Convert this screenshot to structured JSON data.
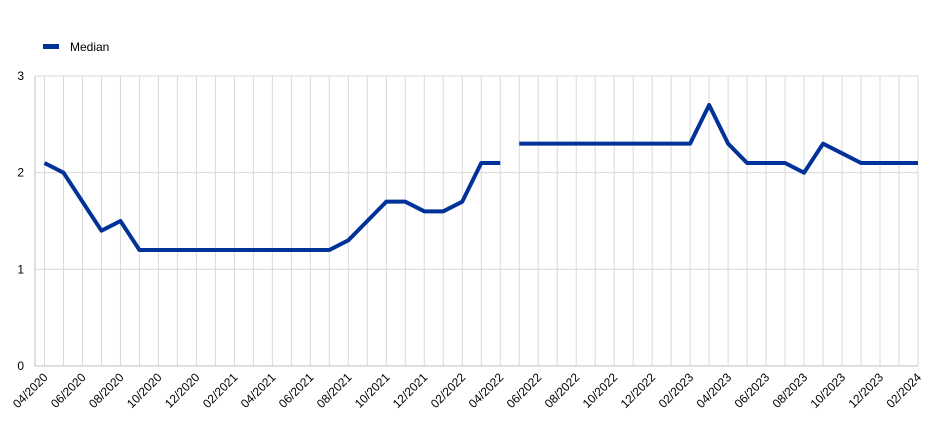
{
  "chart_data": {
    "type": "line",
    "title": "",
    "xlabel": "",
    "ylabel": "",
    "ylim": [
      0,
      3
    ],
    "yticks": [
      0,
      1,
      2,
      3
    ],
    "grid": true,
    "legend_position": "top-left",
    "x": [
      "04/2020",
      "05/2020",
      "06/2020",
      "07/2020",
      "08/2020",
      "09/2020",
      "10/2020",
      "11/2020",
      "12/2020",
      "01/2021",
      "02/2021",
      "03/2021",
      "04/2021",
      "05/2021",
      "06/2021",
      "07/2021",
      "08/2021",
      "09/2021",
      "10/2021",
      "11/2021",
      "12/2021",
      "01/2022",
      "02/2022",
      "03/2022",
      "04/2022",
      "05/2022",
      "06/2022",
      "07/2022",
      "08/2022",
      "09/2022",
      "10/2022",
      "11/2022",
      "12/2022",
      "01/2023",
      "02/2023",
      "03/2023",
      "04/2023",
      "05/2023",
      "06/2023",
      "07/2023",
      "08/2023",
      "09/2023",
      "10/2023",
      "11/2023",
      "12/2023",
      "01/2024",
      "02/2024"
    ],
    "xtick_labels": [
      "04/2020",
      "06/2020",
      "08/2020",
      "10/2020",
      "12/2020",
      "02/2021",
      "04/2021",
      "06/2021",
      "08/2021",
      "10/2021",
      "12/2021",
      "02/2022",
      "04/2022",
      "06/2022",
      "08/2022",
      "10/2022",
      "12/2022",
      "02/2023",
      "04/2023",
      "06/2023",
      "08/2023",
      "10/2023",
      "12/2023",
      "02/2024"
    ],
    "series": [
      {
        "name": "Median",
        "color": "#003299",
        "segments": [
          {
            "x": [
              "04/2020",
              "05/2020",
              "06/2020",
              "07/2020",
              "08/2020",
              "09/2020",
              "10/2020",
              "11/2020",
              "12/2020",
              "01/2021",
              "02/2021",
              "03/2021",
              "04/2021",
              "05/2021",
              "06/2021",
              "07/2021",
              "08/2021",
              "09/2021",
              "10/2021",
              "11/2021",
              "12/2021",
              "01/2022",
              "02/2022",
              "03/2022",
              "04/2022"
            ],
            "values": [
              2.1,
              2.0,
              1.7,
              1.4,
              1.5,
              1.2,
              1.2,
              1.2,
              1.2,
              1.2,
              1.2,
              1.2,
              1.2,
              1.2,
              1.2,
              1.2,
              1.3,
              1.5,
              1.7,
              1.7,
              1.6,
              1.6,
              1.7,
              2.1,
              2.1
            ]
          },
          {
            "x": [
              "05/2022",
              "06/2022",
              "07/2022",
              "08/2022",
              "09/2022",
              "10/2022",
              "11/2022",
              "12/2022",
              "01/2023",
              "02/2023",
              "03/2023",
              "04/2023",
              "05/2023",
              "06/2023",
              "07/2023",
              "08/2023",
              "09/2023",
              "10/2023",
              "11/2023",
              "12/2023",
              "01/2024",
              "02/2024"
            ],
            "values": [
              2.3,
              2.3,
              2.3,
              2.3,
              2.3,
              2.3,
              2.3,
              2.3,
              2.3,
              2.3,
              2.7,
              2.3,
              2.1,
              2.1,
              2.1,
              2.0,
              2.3,
              2.2,
              2.1,
              2.1,
              2.1,
              2.1
            ]
          }
        ]
      }
    ]
  }
}
